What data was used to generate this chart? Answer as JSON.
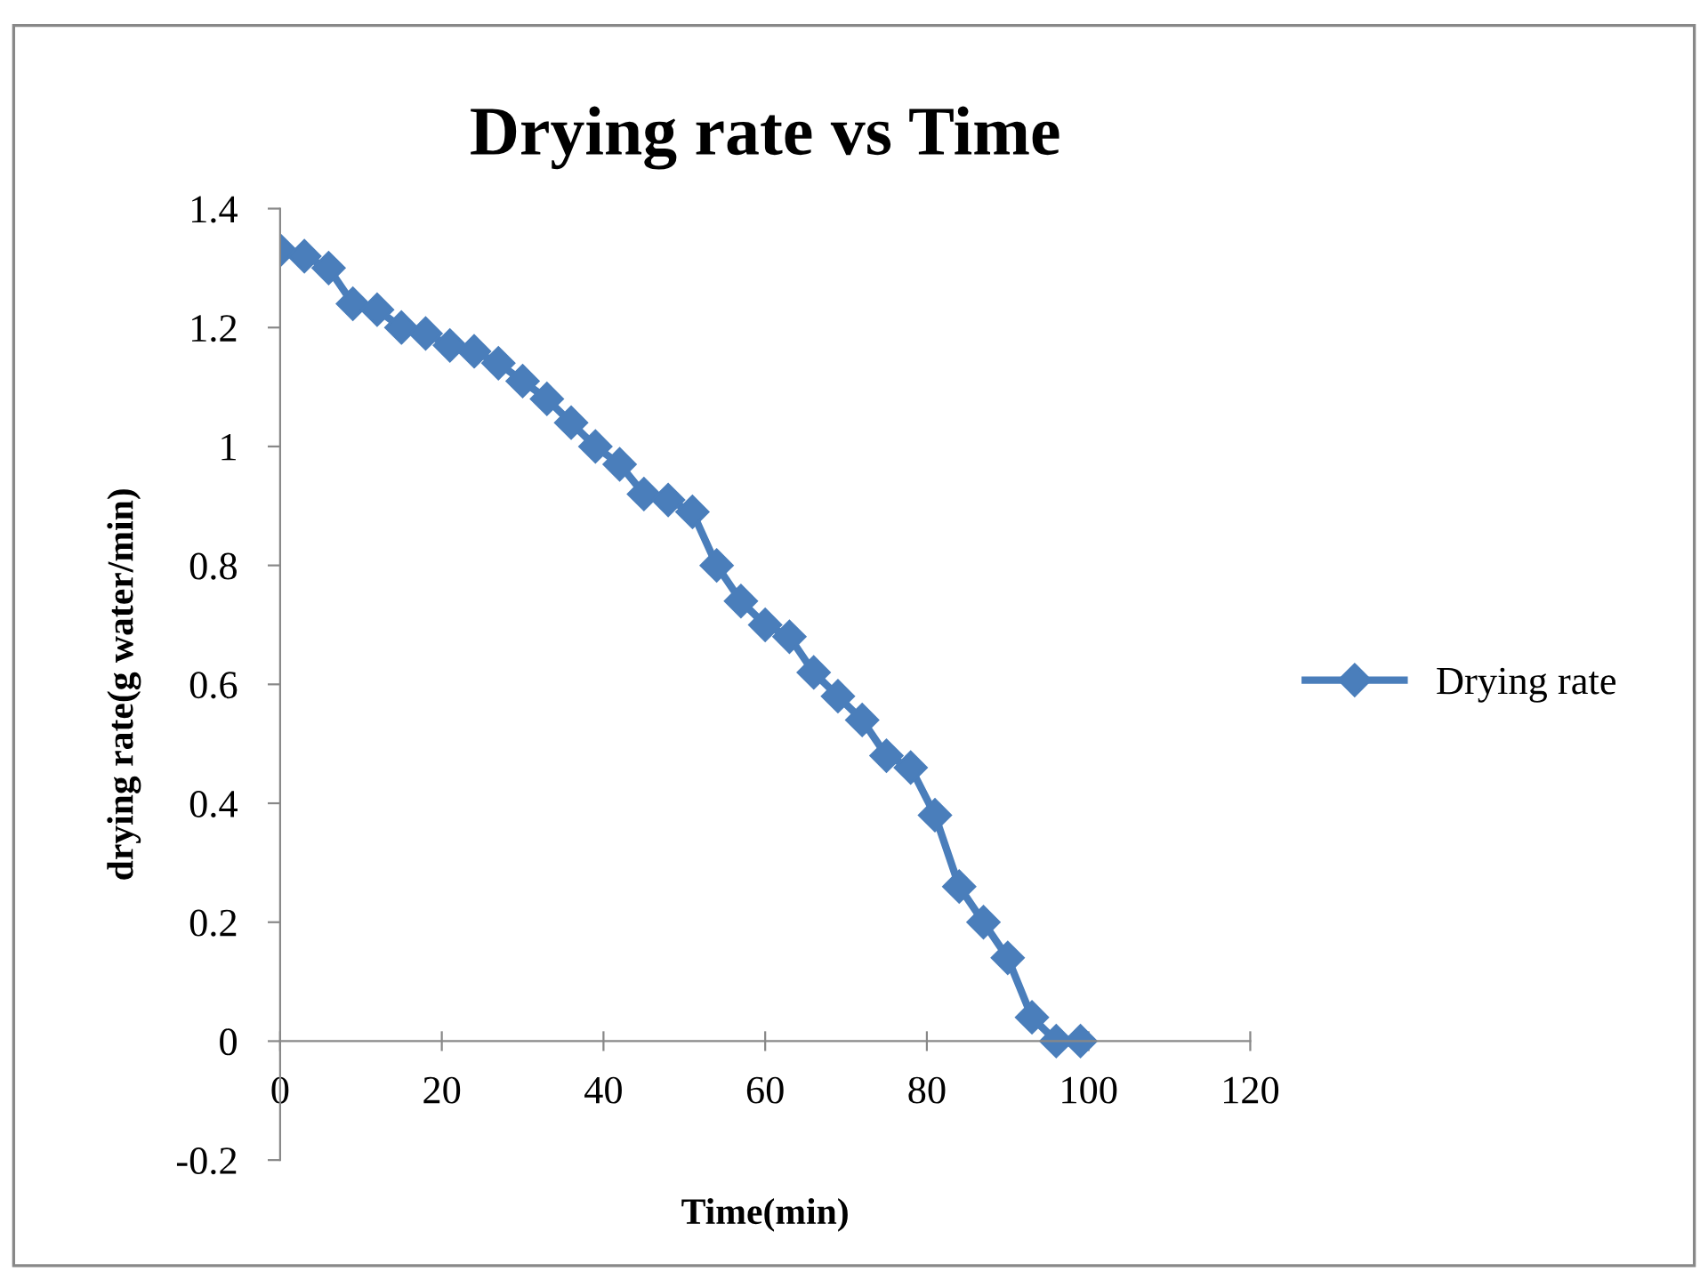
{
  "chart_data": {
    "type": "line",
    "title": "Drying rate vs Time",
    "xlabel": "Time(min)",
    "ylabel": "drying rate(g water/min)",
    "x": [
      0,
      3,
      6,
      9,
      12,
      15,
      18,
      21,
      24,
      27,
      30,
      33,
      36,
      39,
      42,
      45,
      48,
      51,
      54,
      57,
      60,
      63,
      66,
      69,
      72,
      75,
      78,
      81,
      84,
      87,
      90,
      93,
      96,
      99
    ],
    "series": [
      {
        "name": "Drying rate",
        "color": "#4a7ebb",
        "values": [
          1.33,
          1.32,
          1.3,
          1.24,
          1.23,
          1.2,
          1.19,
          1.17,
          1.16,
          1.14,
          1.11,
          1.08,
          1.04,
          1.0,
          0.97,
          0.92,
          0.91,
          0.89,
          0.8,
          0.74,
          0.7,
          0.68,
          0.62,
          0.58,
          0.54,
          0.48,
          0.46,
          0.38,
          0.26,
          0.2,
          0.14,
          0.04,
          0.0,
          0.0
        ]
      }
    ],
    "xlim": [
      0,
      120
    ],
    "xticks": [
      0,
      20,
      40,
      60,
      80,
      100,
      120
    ],
    "ylim": [
      -0.2,
      1.4
    ],
    "yticks": [
      -0.2,
      0,
      0.2,
      0.4,
      0.6,
      0.8,
      1,
      1.2,
      1.4
    ],
    "grid": false,
    "legend": "right",
    "marker": "diamond",
    "line_style": "solid"
  }
}
